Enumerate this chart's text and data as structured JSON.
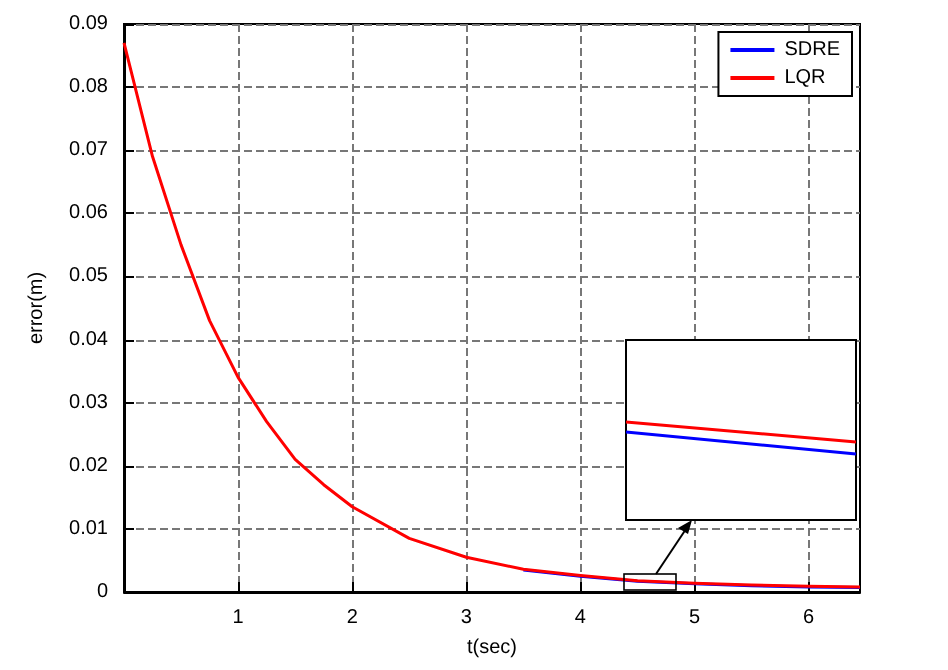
{
  "chart_data": {
    "type": "line",
    "xlabel": "t(sec)",
    "ylabel": "error(m)",
    "x": [
      0,
      0.25,
      0.5,
      0.75,
      1,
      1.25,
      1.5,
      1.75,
      2,
      2.5,
      3,
      3.5,
      4,
      4.5,
      5,
      5.5,
      6,
      6.45
    ],
    "series": [
      {
        "name": "SDRE",
        "color": "#0000ff",
        "values": [
          null,
          null,
          null,
          null,
          null,
          null,
          null,
          null,
          null,
          null,
          null,
          0.0035,
          0.0025,
          0.0017,
          0.0013,
          0.001,
          0.0008,
          0.0007
        ]
      },
      {
        "name": "LQR",
        "color": "#ff0000",
        "values": [
          0.087,
          0.069,
          0.055,
          0.043,
          0.034,
          0.027,
          0.021,
          0.017,
          0.0135,
          0.0085,
          0.0055,
          0.0036,
          0.0026,
          0.0018,
          0.0014,
          0.0011,
          0.0009,
          0.0008
        ]
      }
    ],
    "xlim": [
      0,
      6.45
    ],
    "xticks": [
      1,
      2,
      3,
      4,
      5,
      6
    ],
    "ylim": [
      0,
      0.09
    ],
    "yticks": [
      0,
      0.01,
      0.02,
      0.03,
      0.04,
      0.05,
      0.06,
      0.07,
      0.08,
      0.09
    ],
    "grid": true,
    "legend": "top right",
    "line_style": "solid",
    "marker": "none"
  }
}
